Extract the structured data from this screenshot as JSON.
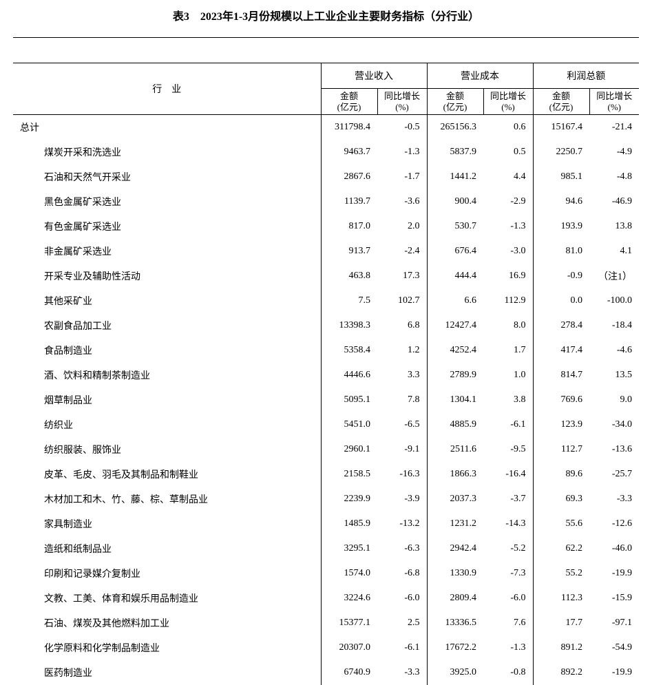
{
  "title": "表3　2023年1-3月份规模以上工业企业主要财务指标（分行业）",
  "header": {
    "industry": "行　业",
    "groups": [
      "营业收入",
      "营业成本",
      "利润总额"
    ],
    "sub_amount": "金额\n(亿元)",
    "sub_growth": "同比增长\n(%)"
  },
  "total_label": "总计",
  "total_row": [
    "311798.4",
    "-0.5",
    "265156.3",
    "0.6",
    "15167.4",
    "-21.4"
  ],
  "rows": [
    {
      "label": "煤炭开采和洗选业",
      "v": [
        "9463.7",
        "-1.3",
        "5837.9",
        "0.5",
        "2250.7",
        "-4.9"
      ]
    },
    {
      "label": "石油和天然气开采业",
      "v": [
        "2867.6",
        "-1.7",
        "1441.2",
        "4.4",
        "985.1",
        "-4.8"
      ]
    },
    {
      "label": "黑色金属矿采选业",
      "v": [
        "1139.7",
        "-3.6",
        "900.4",
        "-2.9",
        "94.6",
        "-46.9"
      ]
    },
    {
      "label": "有色金属矿采选业",
      "v": [
        "817.0",
        "2.0",
        "530.7",
        "-1.3",
        "193.9",
        "13.8"
      ]
    },
    {
      "label": "非金属矿采选业",
      "v": [
        "913.7",
        "-2.4",
        "676.4",
        "-3.0",
        "81.0",
        "4.1"
      ]
    },
    {
      "label": "开采专业及辅助性活动",
      "v": [
        "463.8",
        "17.3",
        "444.4",
        "16.9",
        "-0.9",
        "（注1）"
      ]
    },
    {
      "label": "其他采矿业",
      "v": [
        "7.5",
        "102.7",
        "6.6",
        "112.9",
        "0.0",
        "-100.0"
      ]
    },
    {
      "label": "农副食品加工业",
      "v": [
        "13398.3",
        "6.8",
        "12427.4",
        "8.0",
        "278.4",
        "-18.4"
      ]
    },
    {
      "label": "食品制造业",
      "v": [
        "5358.4",
        "1.2",
        "4252.4",
        "1.7",
        "417.4",
        "-4.6"
      ]
    },
    {
      "label": "酒、饮料和精制茶制造业",
      "v": [
        "4446.6",
        "3.3",
        "2789.9",
        "1.0",
        "814.7",
        "13.5"
      ]
    },
    {
      "label": "烟草制品业",
      "v": [
        "5095.1",
        "7.8",
        "1304.1",
        "3.8",
        "769.6",
        "9.0"
      ]
    },
    {
      "label": "纺织业",
      "v": [
        "5451.0",
        "-6.5",
        "4885.9",
        "-6.1",
        "123.9",
        "-34.0"
      ]
    },
    {
      "label": "纺织服装、服饰业",
      "v": [
        "2960.1",
        "-9.1",
        "2511.6",
        "-9.5",
        "112.7",
        "-13.6"
      ]
    },
    {
      "label": "皮革、毛皮、羽毛及其制品和制鞋业",
      "v": [
        "2158.5",
        "-16.3",
        "1866.3",
        "-16.4",
        "89.6",
        "-25.7"
      ]
    },
    {
      "label": "木材加工和木、竹、藤、棕、草制品业",
      "v": [
        "2239.9",
        "-3.9",
        "2037.3",
        "-3.7",
        "69.3",
        "-3.3"
      ]
    },
    {
      "label": "家具制造业",
      "v": [
        "1485.9",
        "-13.2",
        "1231.2",
        "-14.3",
        "55.6",
        "-12.6"
      ]
    },
    {
      "label": "造纸和纸制品业",
      "v": [
        "3295.1",
        "-6.3",
        "2942.4",
        "-5.2",
        "62.2",
        "-46.0"
      ]
    },
    {
      "label": "印刷和记录媒介复制业",
      "v": [
        "1574.0",
        "-6.8",
        "1330.9",
        "-7.3",
        "55.2",
        "-19.9"
      ]
    },
    {
      "label": "文教、工美、体育和娱乐用品制造业",
      "v": [
        "3224.6",
        "-6.0",
        "2809.4",
        "-6.0",
        "112.3",
        "-15.9"
      ]
    },
    {
      "label": "石油、煤炭及其他燃料加工业",
      "v": [
        "15377.1",
        "2.5",
        "13336.5",
        "7.6",
        "17.7",
        "-97.1"
      ]
    },
    {
      "label": "化学原料和化学制品制造业",
      "v": [
        "20307.0",
        "-6.1",
        "17672.2",
        "-1.3",
        "891.2",
        "-54.9"
      ]
    },
    {
      "label": "医药制造业",
      "v": [
        "6740.9",
        "-3.3",
        "3925.0",
        "-0.8",
        "892.2",
        "-19.9"
      ]
    }
  ]
}
